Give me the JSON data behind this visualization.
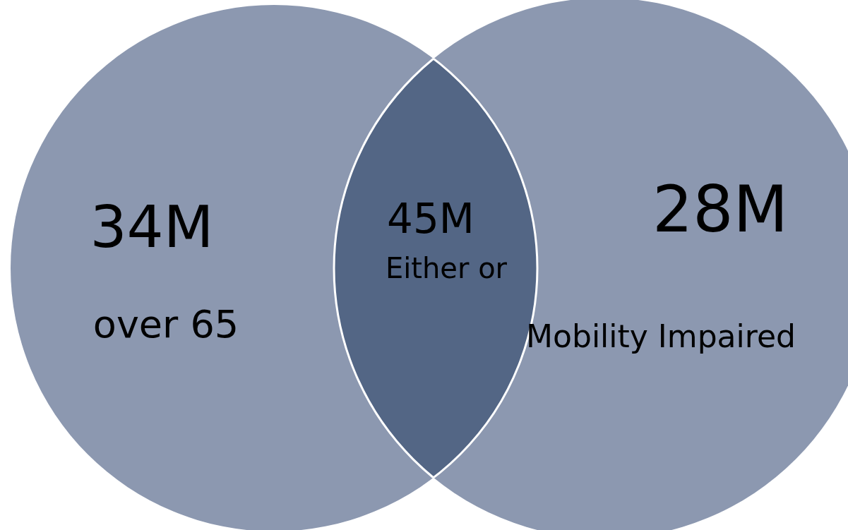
{
  "chart_data": {
    "type": "other",
    "categories": [
      "over 65",
      "Either or",
      "Mobility Impaired"
    ],
    "values": [
      34,
      45,
      28
    ],
    "value_labels": [
      "34M",
      "45M",
      "28M"
    ],
    "colors": [
      "#8c98b0",
      "#536685",
      "#8c98b0"
    ]
  }
}
